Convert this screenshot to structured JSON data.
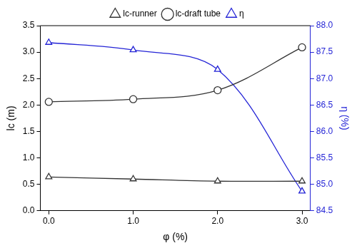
{
  "chart_data": {
    "type": "line",
    "x_label": "φ (%)",
    "y_label": "lc (m)",
    "y2_label": "η (%)",
    "x": [
      0,
      1,
      2,
      3
    ],
    "xlim": [
      -0.1,
      3.1
    ],
    "xticks": [
      {
        "value": 0,
        "label": "0.0"
      },
      {
        "value": 1,
        "label": "1.0"
      },
      {
        "value": 2,
        "label": "2.0"
      },
      {
        "value": 3,
        "label": "3.0"
      }
    ],
    "ylim": [
      0,
      3.5
    ],
    "yticks": [
      {
        "value": 0,
        "label": "0.0"
      },
      0.5,
      {
        "value": 1,
        "label": "1.0"
      },
      1.5,
      {
        "value": 2,
        "label": "2.0"
      },
      2.5,
      {
        "value": 3,
        "label": "3.0"
      },
      3.5
    ],
    "y2lim": [
      84.5,
      88.0
    ],
    "y2ticks": [
      84.5,
      {
        "value": 85,
        "label": "85.0"
      },
      85.5,
      {
        "value": 86,
        "label": "86.0"
      },
      86.5,
      {
        "value": 87,
        "label": "87.0"
      },
      87.5,
      {
        "value": 88,
        "label": "88.0"
      }
    ],
    "grid": false,
    "legend": "top",
    "series": [
      {
        "name": "lc-runner",
        "color": "#333333",
        "marker": "triangle",
        "values": [
          0.64,
          0.6,
          0.56,
          0.56
        ]
      },
      {
        "name": "lc-draft tube",
        "color": "#333333",
        "marker": "circle",
        "values": [
          2.06,
          2.11,
          2.28,
          3.09
        ]
      },
      {
        "name": "η",
        "color": "#2424d6",
        "marker": "triangle",
        "axis": "y2",
        "values": [
          87.68,
          87.54,
          87.17,
          84.87
        ]
      }
    ]
  }
}
